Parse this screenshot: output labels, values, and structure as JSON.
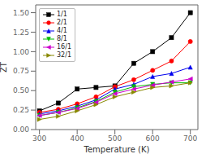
{
  "chart_data": {
    "type": "line",
    "xlabel": "Temperature (K)",
    "ylabel": "ZT",
    "x": [
      300,
      350,
      400,
      450,
      500,
      550,
      600,
      650,
      700
    ],
    "xlim": [
      290,
      720
    ],
    "xticks": [
      300,
      400,
      500,
      600,
      700
    ],
    "ylim": [
      0.0,
      1.6
    ],
    "yticks": [
      {
        "value": 0.0,
        "label": "0.00"
      },
      0.25,
      {
        "value": 0.5,
        "label": "0.50"
      },
      {
        "value": 0.75,
        "label": "0.75"
      },
      {
        "value": 1.0,
        "label": "1.00"
      },
      1.25,
      {
        "value": 1.5,
        "label": "1.50"
      }
    ],
    "grid": false,
    "legend": "upper left",
    "series": [
      {
        "name": "1/1",
        "color": "#000000",
        "marker": "square",
        "values": [
          0.24,
          0.34,
          0.52,
          0.54,
          0.56,
          0.85,
          1.0,
          1.18,
          1.5
        ]
      },
      {
        "name": "2/1",
        "color": "#ff0000",
        "marker": "circle",
        "values": [
          0.22,
          0.26,
          0.33,
          0.42,
          0.55,
          0.64,
          0.76,
          0.88,
          1.13
        ]
      },
      {
        "name": "4/1",
        "color": "#0000ee",
        "marker": "triangle-up",
        "values": [
          0.2,
          0.24,
          0.3,
          0.38,
          0.52,
          0.58,
          0.68,
          0.72,
          0.8
        ]
      },
      {
        "name": "8/1",
        "color": "#00bb00",
        "marker": "triangle-down",
        "values": [
          0.18,
          0.22,
          0.28,
          0.36,
          0.48,
          0.55,
          0.58,
          0.6,
          0.6
        ]
      },
      {
        "name": "16/1",
        "color": "#cc00cc",
        "marker": "triangle-left",
        "values": [
          0.18,
          0.22,
          0.27,
          0.35,
          0.46,
          0.52,
          0.57,
          0.61,
          0.65
        ]
      },
      {
        "name": "32/1",
        "color": "#888800",
        "marker": "triangle-right",
        "values": [
          0.13,
          0.17,
          0.24,
          0.32,
          0.42,
          0.48,
          0.54,
          0.56,
          0.6
        ]
      }
    ]
  }
}
